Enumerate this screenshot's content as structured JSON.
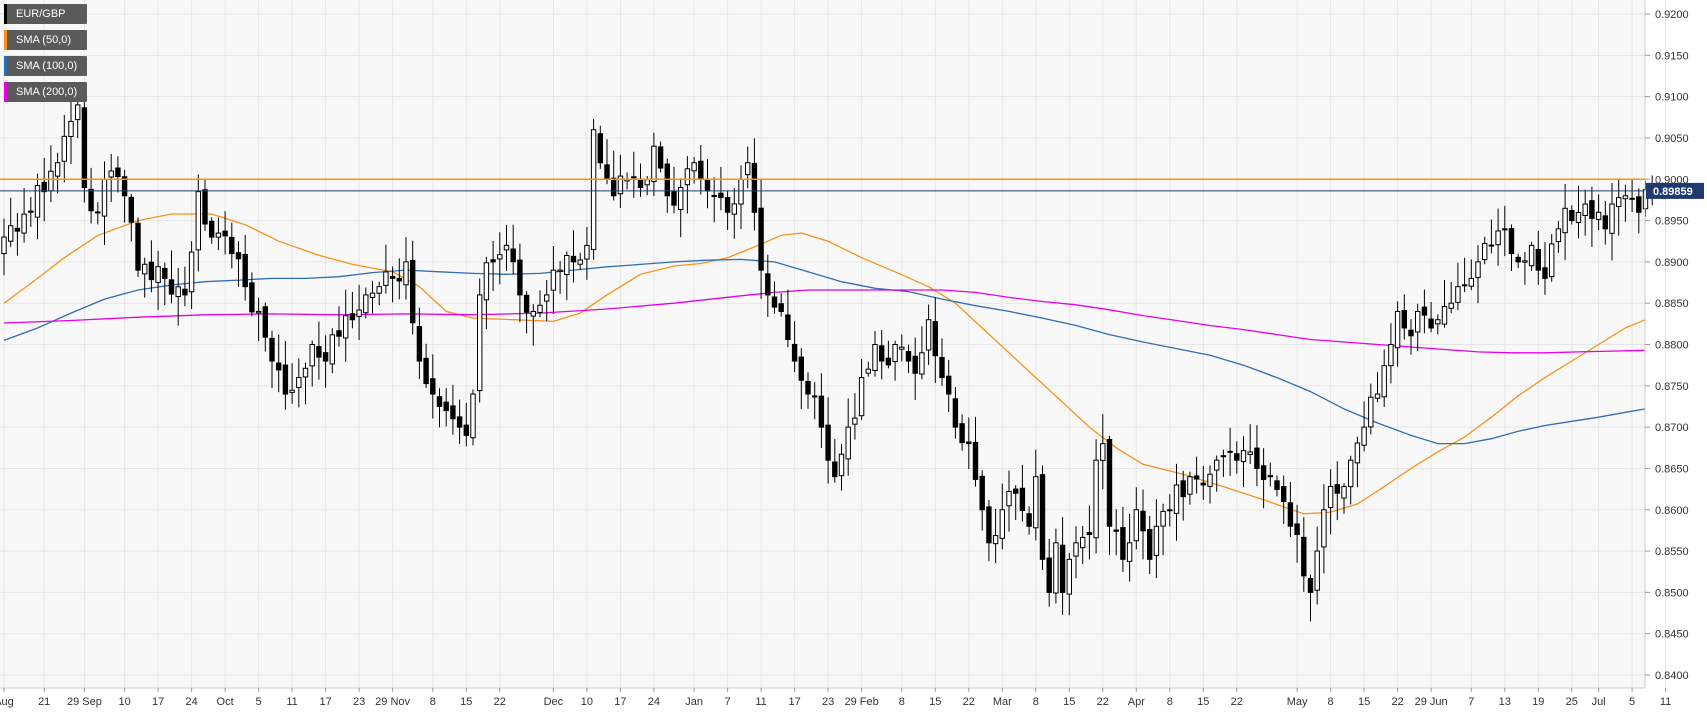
{
  "chart_data": {
    "type": "candlestick",
    "symbol": "EUR/GBP",
    "ylim": [
      0.838,
      0.922
    ],
    "yticks": [
      "0.8400",
      "0.8450",
      "0.8500",
      "0.8550",
      "0.8600",
      "0.8650",
      "0.8700",
      "0.8750",
      "0.8800",
      "0.8850",
      "0.8900",
      "0.8950",
      "0.9000",
      "0.9050",
      "0.9100",
      "0.9150",
      "0.9200"
    ],
    "xticks": [
      {
        "i": 0,
        "label": "Aug"
      },
      {
        "i": 6,
        "label": "21"
      },
      {
        "i": 12,
        "label": "29 Sep"
      },
      {
        "i": 18,
        "label": "10"
      },
      {
        "i": 23,
        "label": "17"
      },
      {
        "i": 28,
        "label": "24"
      },
      {
        "i": 33,
        "label": "Oct"
      },
      {
        "i": 38,
        "label": "5"
      },
      {
        "i": 43,
        "label": "11"
      },
      {
        "i": 48,
        "label": "17"
      },
      {
        "i": 53,
        "label": "23"
      },
      {
        "i": 58,
        "label": "29 Nov"
      },
      {
        "i": 64,
        "label": "8"
      },
      {
        "i": 69,
        "label": "15"
      },
      {
        "i": 74,
        "label": "22"
      },
      {
        "i": 82,
        "label": "Dec"
      },
      {
        "i": 87,
        "label": "10"
      },
      {
        "i": 92,
        "label": "17"
      },
      {
        "i": 97,
        "label": "24"
      },
      {
        "i": 103,
        "label": "Jan"
      },
      {
        "i": 108,
        "label": "7"
      },
      {
        "i": 113,
        "label": "11"
      },
      {
        "i": 118,
        "label": "17"
      },
      {
        "i": 123,
        "label": "23"
      },
      {
        "i": 128,
        "label": "29 Feb"
      },
      {
        "i": 134,
        "label": "8"
      },
      {
        "i": 139,
        "label": "15"
      },
      {
        "i": 144,
        "label": "22"
      },
      {
        "i": 149,
        "label": "Mar"
      },
      {
        "i": 154,
        "label": "8"
      },
      {
        "i": 159,
        "label": "15"
      },
      {
        "i": 164,
        "label": "22"
      },
      {
        "i": 169,
        "label": "Apr"
      },
      {
        "i": 174,
        "label": "8"
      },
      {
        "i": 179,
        "label": "15"
      },
      {
        "i": 184,
        "label": "22"
      },
      {
        "i": 193,
        "label": "May"
      },
      {
        "i": 198,
        "label": "8"
      },
      {
        "i": 203,
        "label": "15"
      },
      {
        "i": 208,
        "label": "22"
      },
      {
        "i": 213,
        "label": "29 Jun"
      },
      {
        "i": 219,
        "label": "7"
      },
      {
        "i": 224,
        "label": "13"
      },
      {
        "i": 229,
        "label": "19"
      },
      {
        "i": 234,
        "label": "25"
      },
      {
        "i": 238,
        "label": "Jul"
      },
      {
        "i": 243,
        "label": "5"
      },
      {
        "i": 248,
        "label": "11"
      }
    ],
    "anchors_close": [
      [
        0,
        0.893
      ],
      [
        4,
        0.896
      ],
      [
        6,
        0.8985
      ],
      [
        8,
        0.902
      ],
      [
        10,
        0.907
      ],
      [
        11,
        0.909
      ],
      [
        12,
        0.899
      ],
      [
        14,
        0.896
      ],
      [
        16,
        0.901
      ],
      [
        18,
        0.898
      ],
      [
        20,
        0.889
      ],
      [
        24,
        0.888
      ],
      [
        27,
        0.886
      ],
      [
        29,
        0.8985
      ],
      [
        31,
        0.893
      ],
      [
        34,
        0.891
      ],
      [
        36,
        0.887
      ],
      [
        38,
        0.884
      ],
      [
        40,
        0.878
      ],
      [
        42,
        0.874
      ],
      [
        44,
        0.876
      ],
      [
        46,
        0.88
      ],
      [
        48,
        0.878
      ],
      [
        50,
        0.881
      ],
      [
        52,
        0.883
      ],
      [
        54,
        0.886
      ],
      [
        56,
        0.887
      ],
      [
        58,
        0.888
      ],
      [
        60,
        0.89
      ],
      [
        62,
        0.878
      ],
      [
        64,
        0.874
      ],
      [
        66,
        0.872
      ],
      [
        68,
        0.87
      ],
      [
        69,
        0.869
      ],
      [
        70,
        0.874
      ],
      [
        71,
        0.886
      ],
      [
        73,
        0.89
      ],
      [
        75,
        0.892
      ],
      [
        77,
        0.886
      ],
      [
        79,
        0.884
      ],
      [
        81,
        0.886
      ],
      [
        83,
        0.889
      ],
      [
        85,
        0.89
      ],
      [
        87,
        0.892
      ],
      [
        88,
        0.906
      ],
      [
        89,
        0.902
      ],
      [
        91,
        0.898
      ],
      [
        93,
        0.9
      ],
      [
        95,
        0.899
      ],
      [
        97,
        0.904
      ],
      [
        99,
        0.898
      ],
      [
        101,
        0.899
      ],
      [
        103,
        0.902
      ],
      [
        104,
        0.9
      ],
      [
        106,
        0.898
      ],
      [
        108,
        0.896
      ],
      [
        110,
        0.9
      ],
      [
        111,
        0.902
      ],
      [
        112,
        0.896
      ],
      [
        113,
        0.889
      ],
      [
        114,
        0.886
      ],
      [
        116,
        0.884
      ],
      [
        118,
        0.878
      ],
      [
        120,
        0.874
      ],
      [
        122,
        0.87
      ],
      [
        123,
        0.866
      ],
      [
        124,
        0.864
      ],
      [
        126,
        0.87
      ],
      [
        128,
        0.876
      ],
      [
        130,
        0.88
      ],
      [
        131,
        0.878
      ],
      [
        133,
        0.88
      ],
      [
        135,
        0.878
      ],
      [
        137,
        0.879
      ],
      [
        138,
        0.883
      ],
      [
        140,
        0.876
      ],
      [
        141,
        0.874
      ],
      [
        142,
        0.87
      ],
      [
        144,
        0.868
      ],
      [
        146,
        0.86
      ],
      [
        147,
        0.856
      ],
      [
        149,
        0.86
      ],
      [
        151,
        0.862
      ],
      [
        153,
        0.858
      ],
      [
        154,
        0.864
      ],
      [
        155,
        0.854
      ],
      [
        156,
        0.85
      ],
      [
        157,
        0.856
      ],
      [
        158,
        0.85
      ],
      [
        159,
        0.854
      ],
      [
        160,
        0.856
      ],
      [
        162,
        0.857
      ],
      [
        163,
        0.866
      ],
      [
        164,
        0.868
      ],
      [
        165,
        0.858
      ],
      [
        167,
        0.854
      ],
      [
        168,
        0.856
      ],
      [
        169,
        0.86
      ],
      [
        171,
        0.854
      ],
      [
        172,
        0.858
      ],
      [
        174,
        0.86
      ],
      [
        175,
        0.863
      ],
      [
        177,
        0.864
      ],
      [
        179,
        0.863
      ],
      [
        181,
        0.866
      ],
      [
        183,
        0.867
      ],
      [
        184,
        0.866
      ],
      [
        186,
        0.867
      ],
      [
        187,
        0.865
      ],
      [
        189,
        0.864
      ],
      [
        191,
        0.861
      ],
      [
        192,
        0.858
      ],
      [
        193,
        0.857
      ],
      [
        194,
        0.852
      ],
      [
        195,
        0.85
      ],
      [
        196,
        0.855
      ],
      [
        197,
        0.86
      ],
      [
        199,
        0.862
      ],
      [
        201,
        0.866
      ],
      [
        203,
        0.87
      ],
      [
        205,
        0.874
      ],
      [
        207,
        0.88
      ],
      [
        208,
        0.884
      ],
      [
        209,
        0.882
      ],
      [
        211,
        0.884
      ],
      [
        213,
        0.882
      ],
      [
        214,
        0.883
      ],
      [
        216,
        0.885
      ],
      [
        217,
        0.887
      ],
      [
        219,
        0.888
      ],
      [
        220,
        0.89
      ],
      [
        222,
        0.892
      ],
      [
        224,
        0.894
      ],
      [
        225,
        0.891
      ],
      [
        226,
        0.89
      ],
      [
        228,
        0.892
      ],
      [
        229,
        0.889
      ],
      [
        230,
        0.888
      ],
      [
        232,
        0.894
      ],
      [
        234,
        0.895
      ],
      [
        236,
        0.897
      ],
      [
        238,
        0.896
      ],
      [
        239,
        0.894
      ],
      [
        240,
        0.897
      ],
      [
        242,
        0.898
      ],
      [
        244,
        0.896
      ],
      [
        246,
        0.8986
      ]
    ],
    "series": [
      {
        "name": "SMA (50,0)",
        "color": "#f7931a",
        "points": [
          [
            0,
            0.885
          ],
          [
            5,
            0.888
          ],
          [
            9,
            0.8905
          ],
          [
            14,
            0.8932
          ],
          [
            20,
            0.895
          ],
          [
            25,
            0.8958
          ],
          [
            31,
            0.8958
          ],
          [
            36,
            0.8945
          ],
          [
            41,
            0.8925
          ],
          [
            47,
            0.8908
          ],
          [
            52,
            0.8897
          ],
          [
            58,
            0.8888
          ],
          [
            62,
            0.887
          ],
          [
            66,
            0.884
          ],
          [
            70,
            0.8832
          ],
          [
            76,
            0.883
          ],
          [
            82,
            0.8828
          ],
          [
            86,
            0.8838
          ],
          [
            90,
            0.886
          ],
          [
            95,
            0.8885
          ],
          [
            100,
            0.8895
          ],
          [
            104,
            0.8898
          ],
          [
            108,
            0.8905
          ],
          [
            112,
            0.8918
          ],
          [
            116,
            0.8932
          ],
          [
            119,
            0.8935
          ],
          [
            123,
            0.8925
          ],
          [
            128,
            0.8905
          ],
          [
            133,
            0.8888
          ],
          [
            138,
            0.887
          ],
          [
            142,
            0.885
          ],
          [
            146,
            0.882
          ],
          [
            150,
            0.879
          ],
          [
            154,
            0.876
          ],
          [
            158,
            0.873
          ],
          [
            162,
            0.87
          ],
          [
            166,
            0.8675
          ],
          [
            170,
            0.8655
          ],
          [
            176,
            0.8643
          ],
          [
            182,
            0.8628
          ],
          [
            188,
            0.8612
          ],
          [
            194,
            0.8595
          ],
          [
            198,
            0.8597
          ],
          [
            202,
            0.8607
          ],
          [
            206,
            0.8628
          ],
          [
            210,
            0.865
          ],
          [
            214,
            0.867
          ],
          [
            218,
            0.8688
          ],
          [
            222,
            0.8712
          ],
          [
            226,
            0.8738
          ],
          [
            230,
            0.876
          ],
          [
            234,
            0.878
          ],
          [
            238,
            0.88
          ],
          [
            242,
            0.882
          ],
          [
            245,
            0.883
          ]
        ]
      },
      {
        "name": "SMA (100,0)",
        "color": "#2f6db5",
        "points": [
          [
            0,
            0.8805
          ],
          [
            5,
            0.882
          ],
          [
            10,
            0.8838
          ],
          [
            15,
            0.8855
          ],
          [
            20,
            0.8866
          ],
          [
            25,
            0.8872
          ],
          [
            30,
            0.8876
          ],
          [
            35,
            0.8878
          ],
          [
            40,
            0.888
          ],
          [
            45,
            0.888
          ],
          [
            50,
            0.8882
          ],
          [
            55,
            0.8887
          ],
          [
            60,
            0.889
          ],
          [
            65,
            0.8888
          ],
          [
            70,
            0.8886
          ],
          [
            75,
            0.8885
          ],
          [
            80,
            0.8886
          ],
          [
            85,
            0.889
          ],
          [
            90,
            0.8894
          ],
          [
            95,
            0.8897
          ],
          [
            100,
            0.89
          ],
          [
            105,
            0.8902
          ],
          [
            110,
            0.8903
          ],
          [
            115,
            0.89
          ],
          [
            120,
            0.8888
          ],
          [
            125,
            0.8876
          ],
          [
            130,
            0.8868
          ],
          [
            135,
            0.8864
          ],
          [
            140,
            0.8855
          ],
          [
            145,
            0.8847
          ],
          [
            150,
            0.884
          ],
          [
            155,
            0.8832
          ],
          [
            160,
            0.8823
          ],
          [
            165,
            0.8812
          ],
          [
            170,
            0.8803
          ],
          [
            175,
            0.8795
          ],
          [
            180,
            0.8787
          ],
          [
            185,
            0.8775
          ],
          [
            190,
            0.876
          ],
          [
            195,
            0.8743
          ],
          [
            200,
            0.8722
          ],
          [
            205,
            0.8705
          ],
          [
            210,
            0.869
          ],
          [
            214,
            0.868
          ],
          [
            218,
            0.868
          ],
          [
            222,
            0.8686
          ],
          [
            226,
            0.8695
          ],
          [
            230,
            0.8702
          ],
          [
            234,
            0.8707
          ],
          [
            238,
            0.8712
          ],
          [
            242,
            0.8718
          ],
          [
            245,
            0.8722
          ]
        ]
      },
      {
        "name": "SMA (200,0)",
        "color": "#e600e6",
        "points": [
          [
            0,
            0.8826
          ],
          [
            10,
            0.8829
          ],
          [
            20,
            0.8833
          ],
          [
            30,
            0.8836
          ],
          [
            40,
            0.8837
          ],
          [
            50,
            0.8836
          ],
          [
            60,
            0.8837
          ],
          [
            70,
            0.8836
          ],
          [
            80,
            0.8838
          ],
          [
            90,
            0.8843
          ],
          [
            100,
            0.885
          ],
          [
            110,
            0.8859
          ],
          [
            115,
            0.8863
          ],
          [
            120,
            0.8866
          ],
          [
            130,
            0.8866
          ],
          [
            140,
            0.8866
          ],
          [
            145,
            0.8863
          ],
          [
            150,
            0.8857
          ],
          [
            155,
            0.8852
          ],
          [
            160,
            0.8848
          ],
          [
            165,
            0.8842
          ],
          [
            170,
            0.8835
          ],
          [
            175,
            0.8829
          ],
          [
            180,
            0.8823
          ],
          [
            185,
            0.8818
          ],
          [
            190,
            0.8812
          ],
          [
            195,
            0.8806
          ],
          [
            200,
            0.8803
          ],
          [
            205,
            0.88
          ],
          [
            210,
            0.8797
          ],
          [
            215,
            0.8794
          ],
          [
            220,
            0.8791
          ],
          [
            225,
            0.879
          ],
          [
            230,
            0.879
          ],
          [
            235,
            0.8791
          ],
          [
            240,
            0.8792
          ],
          [
            245,
            0.8793
          ]
        ]
      }
    ],
    "horizontal_line": {
      "value": 0.9,
      "color": "#f7931a"
    },
    "current_price": {
      "value": 0.89859,
      "label": "0.89859",
      "color": "#1f3a70"
    },
    "legend": [
      {
        "name": "EUR/GBP",
        "color": "#000000"
      },
      {
        "name": "SMA (50,0)",
        "color": "#f7931a"
      },
      {
        "name": "SMA (100,0)",
        "color": "#2f6db5"
      },
      {
        "name": "SMA (200,0)",
        "color": "#e600e6"
      }
    ],
    "grid": true,
    "colors": {
      "background": "#f8f8f8",
      "grid": "#e6e6e6",
      "bull": "#ffffff",
      "bear": "#000000",
      "axis_text": "#333333"
    }
  }
}
